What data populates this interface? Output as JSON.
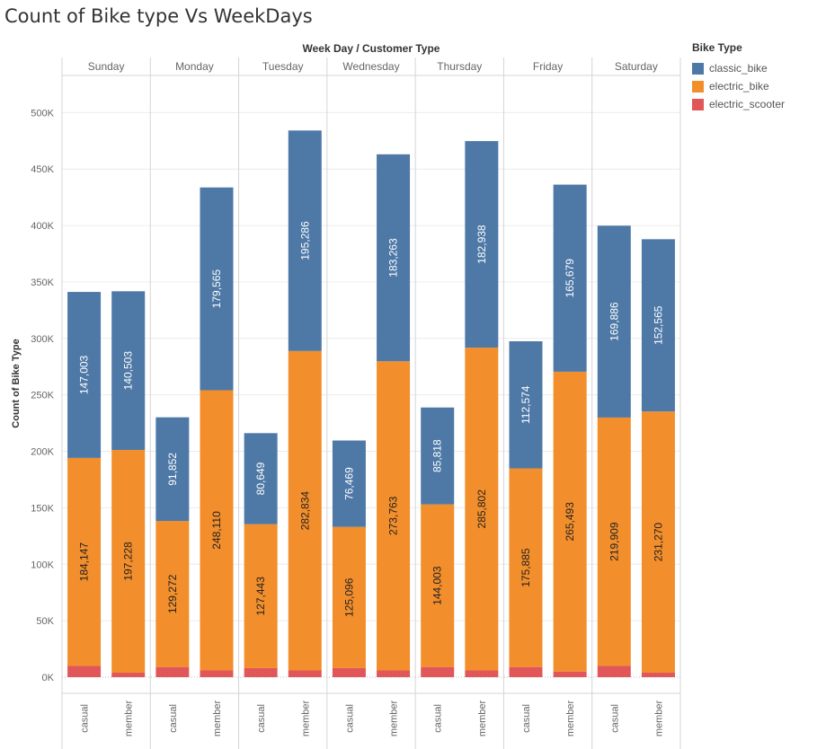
{
  "chart_data": {
    "type": "bar",
    "title": "Count of Bike type Vs WeekDays",
    "column_header": "Week Day  /  Customer Type",
    "ylabel": "Count of Bike Type",
    "ylim": [
      0,
      550000
    ],
    "yticks": [
      0,
      50000,
      100000,
      150000,
      200000,
      250000,
      300000,
      350000,
      400000,
      450000,
      500000
    ],
    "ytick_labels": [
      "0K",
      "50K",
      "100K",
      "150K",
      "200K",
      "250K",
      "300K",
      "350K",
      "400K",
      "450K",
      "500K"
    ],
    "stacked": true,
    "grid": true,
    "legend_position": "right",
    "legend_title": "Bike Type",
    "weekdays": [
      "Sunday",
      "Monday",
      "Tuesday",
      "Wednesday",
      "Thursday",
      "Friday",
      "Saturday"
    ],
    "customer_types": [
      "casual",
      "member"
    ],
    "series": [
      {
        "name": "electric_scooter",
        "color": "#e15759",
        "values": [
          10000,
          4000,
          9000,
          6000,
          8000,
          6000,
          8000,
          6000,
          9000,
          6000,
          9000,
          5000,
          10000,
          4000
        ],
        "labeled": false
      },
      {
        "name": "electric_bike",
        "color": "#f28e2b",
        "values": [
          184147,
          197228,
          129272,
          248110,
          127443,
          282834,
          125096,
          273763,
          144003,
          285802,
          175885,
          265493,
          219909,
          231270
        ],
        "labels": [
          "184,147",
          "197,228",
          "129,272",
          "248,110",
          "127,443",
          "282,834",
          "125,096",
          "273,763",
          "144,003",
          "285,802",
          "175,885",
          "265,493",
          "219,909",
          "231,270"
        ],
        "labeled": true
      },
      {
        "name": "classic_bike",
        "color": "#4e79a7",
        "values": [
          147003,
          140503,
          91852,
          179565,
          80649,
          195286,
          76469,
          183263,
          85818,
          182938,
          112574,
          165679,
          169886,
          152565
        ],
        "labels": [
          "147,003",
          "140,503",
          "91,852",
          "179,565",
          "80,649",
          "195,286",
          "76,469",
          "183,263",
          "85,818",
          "182,938",
          "112,574",
          "165,679",
          "169,886",
          "152,565"
        ],
        "labeled": true
      }
    ],
    "legend_order": [
      "classic_bike",
      "electric_bike",
      "electric_scooter"
    ]
  }
}
